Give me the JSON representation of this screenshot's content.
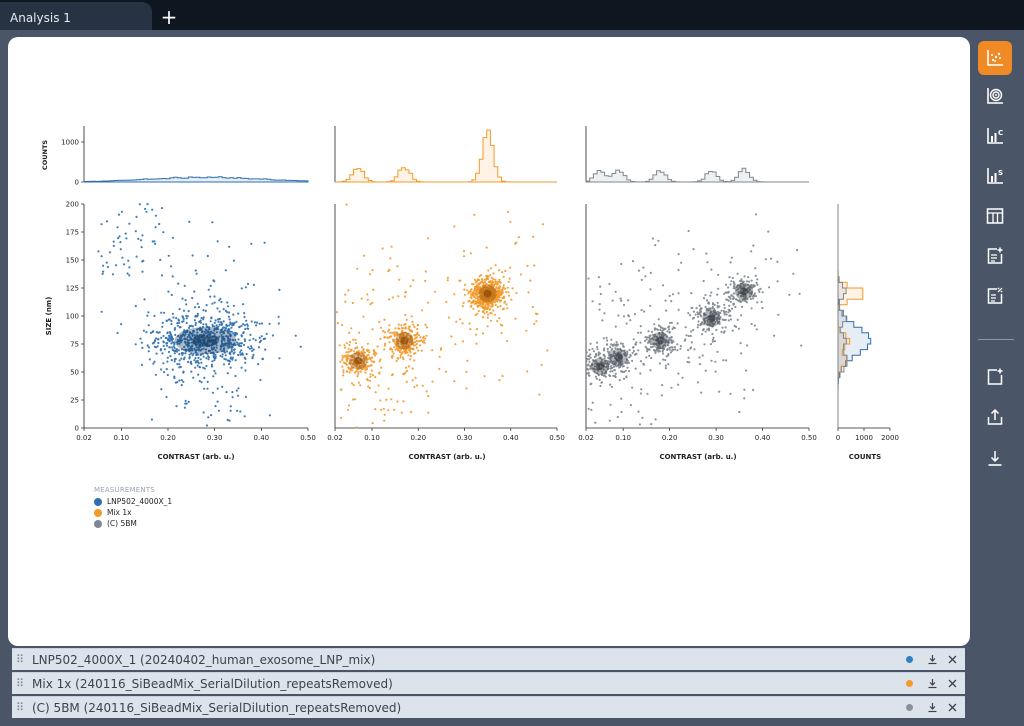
{
  "tabs": {
    "active_label": "Analysis 1",
    "add_label": "+"
  },
  "toolbar": {
    "icons": [
      "scatter-plot-icon",
      "ring-chart-icon",
      "bar-chart-c-icon",
      "bar-chart-s-icon",
      "table-icon",
      "add-note-icon",
      "percent-note-icon",
      "add-panel-icon",
      "share-icon",
      "download-icon"
    ]
  },
  "legend": {
    "title": "MEASUREMENTS",
    "items": [
      {
        "label": "LNP502_4000X_1",
        "color": "#2f6fae"
      },
      {
        "label": "Mix 1x",
        "color": "#f39a2c"
      },
      {
        "label": "(C) 5BM",
        "color": "#7f8790"
      }
    ]
  },
  "measurements": [
    {
      "label": "LNP502_4000X_1 (20240402_human_exosome_LNP_mix)",
      "color": "#2f7fc1"
    },
    {
      "label": "Mix 1x (240116_SiBeadMix_SerialDilution_repeatsRemoved)",
      "color": "#f39a2c"
    },
    {
      "label": "(C) 5BM (240116_SiBeadMix_SerialDilution_repeatsRemoved)",
      "color": "#8a929b"
    }
  ],
  "chart_data": {
    "type": "scatter",
    "xlabel": "CONTRAST (arb. u.)",
    "ylabel": "SIZE (nm)",
    "xlim": [
      0.02,
      0.5
    ],
    "ylim": [
      0,
      200
    ],
    "xticks": [
      "0.02",
      "0.10",
      "0.20",
      "0.30",
      "0.40",
      "0.50"
    ],
    "yticks": [
      "0",
      "25",
      "50",
      "75",
      "100",
      "125",
      "150",
      "175",
      "200"
    ],
    "top_ylabel": "COUNTS",
    "top_yticks": [
      "0",
      "1000"
    ],
    "side_xlabel": "COUNTS",
    "side_xticks": [
      "0",
      "1000",
      "2000"
    ],
    "series": [
      {
        "name": "LNP502_4000X_1",
        "color": "#2f6fae",
        "clusters": [
          {
            "x": 0.28,
            "y": 78,
            "n": 1400
          }
        ],
        "hist_peaks": [
          {
            "x": 0.28,
            "count": 120
          }
        ]
      },
      {
        "name": "Mix 1x",
        "color": "#f39a2c",
        "clusters": [
          {
            "x": 0.07,
            "y": 60,
            "n": 400
          },
          {
            "x": 0.17,
            "y": 78,
            "n": 500
          },
          {
            "x": 0.35,
            "y": 120,
            "n": 1200
          }
        ],
        "hist_peaks": [
          {
            "x": 0.07,
            "count": 350
          },
          {
            "x": 0.17,
            "count": 380
          },
          {
            "x": 0.35,
            "count": 1150
          }
        ]
      },
      {
        "name": "(C) 5BM",
        "color": "#7f8790",
        "clusters": [
          {
            "x": 0.05,
            "y": 55,
            "n": 250
          },
          {
            "x": 0.09,
            "y": 63,
            "n": 300
          },
          {
            "x": 0.18,
            "y": 78,
            "n": 350
          },
          {
            "x": 0.29,
            "y": 98,
            "n": 350
          },
          {
            "x": 0.36,
            "y": 122,
            "n": 350
          }
        ],
        "hist_peaks": [
          {
            "x": 0.05,
            "count": 300
          },
          {
            "x": 0.09,
            "count": 320
          },
          {
            "x": 0.18,
            "count": 260
          },
          {
            "x": 0.29,
            "count": 260
          },
          {
            "x": 0.36,
            "count": 300
          }
        ]
      }
    ]
  }
}
